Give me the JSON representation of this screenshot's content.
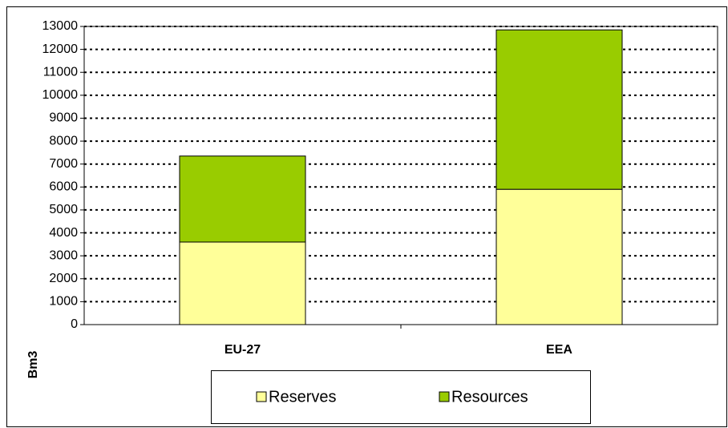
{
  "chart_data": {
    "type": "stacked_bar",
    "y_label": "Bm3",
    "categories": [
      "EU-27",
      "EEA"
    ],
    "series": [
      {
        "name": "Reserves",
        "color": "#ffff99",
        "values": [
          3600,
          5900
        ]
      },
      {
        "name": "Resources",
        "color": "#99cc00",
        "values": [
          3750,
          6950
        ]
      }
    ],
    "ylim": [
      0,
      13000
    ],
    "yticks": [
      0,
      1000,
      2000,
      3000,
      4000,
      5000,
      6000,
      7000,
      8000,
      9000,
      10000,
      11000,
      12000,
      13000
    ],
    "grid": true,
    "legend": "bottom"
  }
}
